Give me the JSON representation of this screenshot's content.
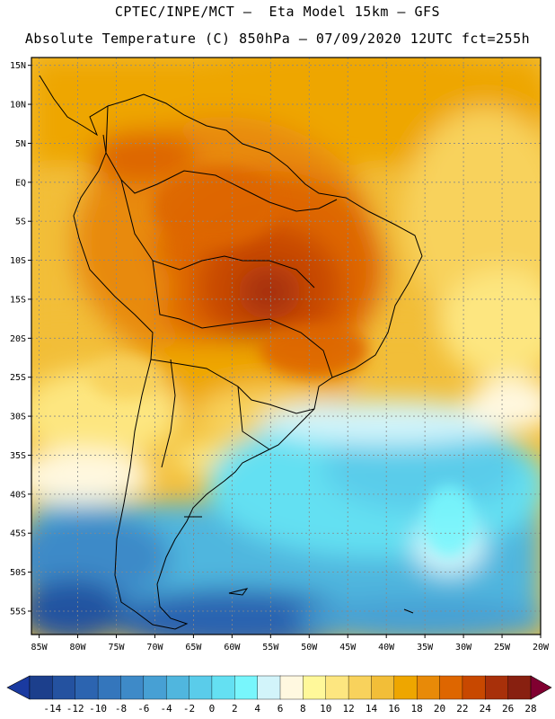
{
  "header": {
    "line1": "CPTEC/INPE/MCT –  Eta Model 15km – GFS",
    "line2": "Absolute Temperature (C) 850hPa – 07/09/2020 12UTC fct=255h"
  },
  "map": {
    "lat_labels": [
      "15N",
      "10N",
      "5N",
      "EQ",
      "5S",
      "10S",
      "15S",
      "20S",
      "25S",
      "30S",
      "35S",
      "40S",
      "45S",
      "50S",
      "55S"
    ],
    "lat_values": [
      15,
      10,
      5,
      0,
      -5,
      -10,
      -15,
      -20,
      -25,
      -30,
      -35,
      -40,
      -45,
      -50,
      -55
    ],
    "lon_labels": [
      "85W",
      "80W",
      "75W",
      "70W",
      "65W",
      "60W",
      "55W",
      "50W",
      "45W",
      "40W",
      "35W",
      "30W",
      "25W",
      "20W"
    ],
    "lon_values": [
      -85,
      -80,
      -75,
      -70,
      -65,
      -60,
      -55,
      -50,
      -45,
      -40,
      -35,
      -30,
      -25,
      -20
    ],
    "extent": {
      "lon_min": -86,
      "lon_max": -20,
      "lat_min": -58,
      "lat_max": 16
    }
  },
  "colorbar": {
    "labels": [
      "-14",
      "-12",
      "-10",
      "-8",
      "-6",
      "-4",
      "-2",
      "0",
      "2",
      "4",
      "6",
      "8",
      "10",
      "12",
      "14",
      "16",
      "18",
      "20",
      "22",
      "24",
      "26",
      "28"
    ],
    "colors": [
      "#1c3f8c",
      "#2452a0",
      "#2c64b0",
      "#3476bc",
      "#3e8ac8",
      "#47a0d4",
      "#50b6de",
      "#5accea",
      "#64e0f2",
      "#78f6fc",
      "#d2f4fa",
      "#fff8e0",
      "#fff89a",
      "#fde680",
      "#f8d25c",
      "#f2be38",
      "#eea600",
      "#e88a08",
      "#de6600",
      "#c84800",
      "#a8300a",
      "#882010"
    ],
    "under_color": "#1a3aa0",
    "over_color": "#800030"
  }
}
